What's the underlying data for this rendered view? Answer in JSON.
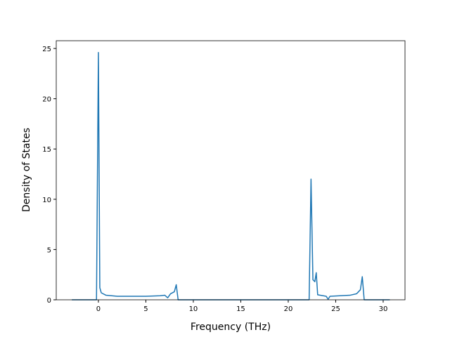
{
  "chart_data": {
    "type": "line",
    "xlabel": "Frequency (THz)",
    "ylabel": "Density of States",
    "x": [
      -2.8,
      -0.2,
      0,
      0.15,
      0.3,
      0.8,
      2,
      5,
      6.5,
      7,
      7.3,
      7.6,
      8,
      8.2,
      8.4,
      22.2,
      22.4,
      22.6,
      22.8,
      22.95,
      23.1,
      24,
      24.2,
      24.4,
      26.5,
      27.2,
      27.6,
      27.8,
      28,
      30.7
    ],
    "series": [
      {
        "name": "DOS",
        "color": "#1f77b4",
        "values": [
          0,
          0,
          24.6,
          1.2,
          0.7,
          0.45,
          0.35,
          0.35,
          0.4,
          0.45,
          0.2,
          0.6,
          0.8,
          1.5,
          0,
          0,
          12,
          2.0,
          1.8,
          2.7,
          0.5,
          0.35,
          0.05,
          0.35,
          0.45,
          0.6,
          1.0,
          2.3,
          0,
          0
        ]
      }
    ],
    "xlim": [
      -4.44,
      32.3
    ],
    "ylim": [
      0,
      25.77
    ],
    "xticks": [
      0,
      5,
      10,
      15,
      20,
      25,
      30
    ],
    "yticks": [
      0,
      5,
      10,
      15,
      20,
      25
    ]
  }
}
